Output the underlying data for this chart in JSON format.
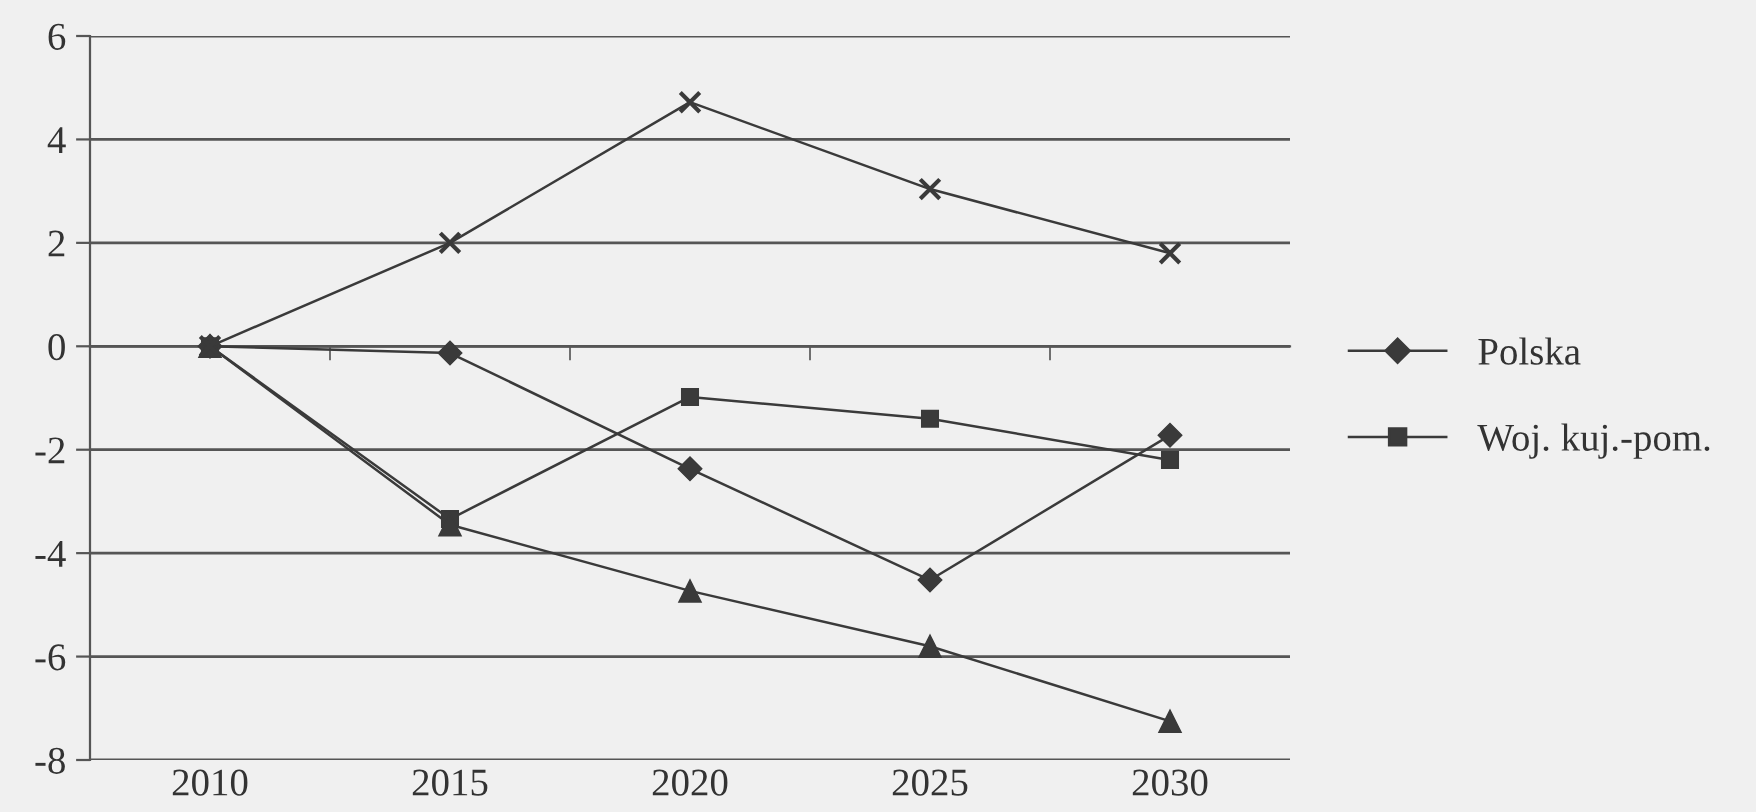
{
  "chart_data": {
    "type": "line",
    "categories": [
      "2010",
      "2015",
      "2020",
      "2025",
      "2030"
    ],
    "series": [
      {
        "name": "Polska",
        "color": "#3a3a3a",
        "marker": "diamond",
        "values": [
          0,
          -0.13,
          -2.37,
          -4.52,
          -1.72
        ]
      },
      {
        "name": "Woj. kuj.-pom.",
        "color": "#3a3a3a",
        "marker": "square",
        "values": [
          0,
          -3.34,
          -0.98,
          -1.4,
          -2.2
        ]
      },
      {
        "color": "#3a3a3a",
        "marker": "triangle",
        "values": [
          0,
          -3.45,
          -4.73,
          -5.8,
          -7.25
        ]
      },
      {
        "color": "#3a3a3a",
        "marker": "cross",
        "values": [
          0,
          2.0,
          4.72,
          3.04,
          1.8
        ]
      }
    ],
    "ylim": [
      -8,
      6
    ],
    "yticks": [
      -8,
      -6,
      -4,
      -2,
      0,
      2,
      4,
      6
    ],
    "grid": "y",
    "legend": "right",
    "line_style": "solid"
  }
}
